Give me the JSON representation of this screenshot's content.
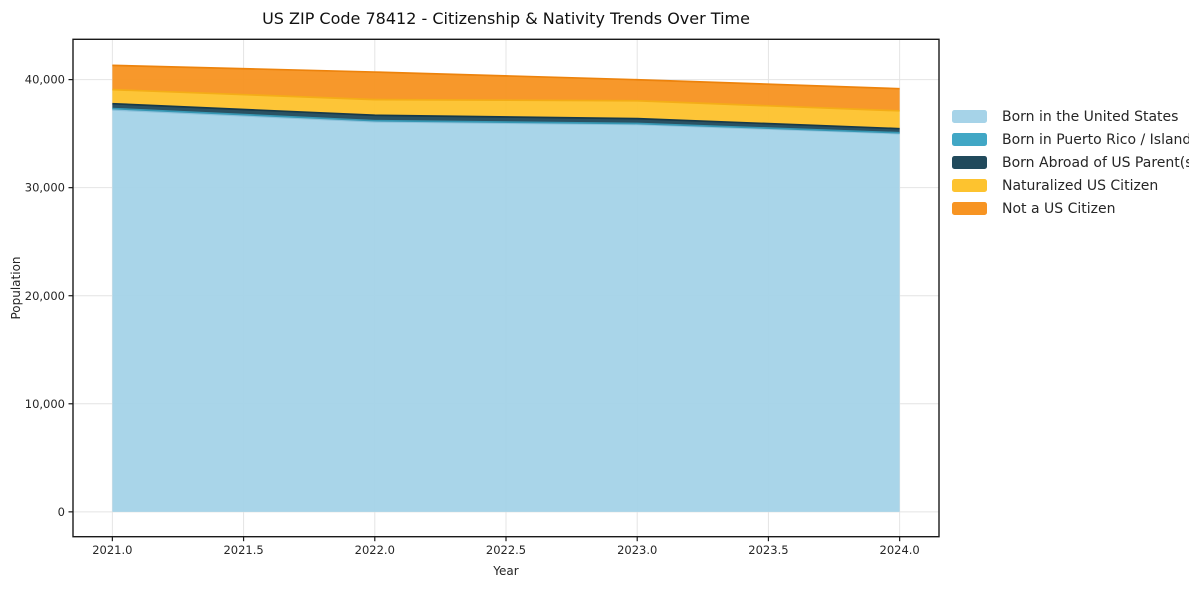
{
  "chart_data": {
    "type": "area",
    "title": "US ZIP Code 78412 - Citizenship & Nativity Trends Over Time",
    "xlabel": "Year",
    "ylabel": "Population",
    "x": [
      2021,
      2022,
      2023,
      2024
    ],
    "series": [
      {
        "name": "Born in the United States",
        "color": "#a6d3e8",
        "edge": "#8cc1db",
        "values": [
          37200,
          36100,
          35850,
          35000
        ]
      },
      {
        "name": "Born in Puerto Rico / Islands",
        "color": "#41a7c5",
        "edge": "#3697b3",
        "values": [
          120,
          100,
          90,
          80
        ]
      },
      {
        "name": "Born Abroad of US Parent(s)",
        "color": "#214a5c",
        "edge": "#16394a",
        "values": [
          450,
          500,
          450,
          380
        ]
      },
      {
        "name": "Naturalized US Citizen",
        "color": "#fdc32f",
        "edge": "#f4ad17",
        "values": [
          1300,
          1450,
          1650,
          1650
        ]
      },
      {
        "name": "Not a US Citizen",
        "color": "#f79422",
        "edge": "#ed830c",
        "values": [
          2250,
          2550,
          1950,
          2050
        ]
      }
    ],
    "xlim": [
      2020.85,
      2024.15
    ],
    "ylim": [
      -2300,
      43730
    ],
    "xticks": {
      "values": [
        2021.0,
        2021.5,
        2022.0,
        2022.5,
        2023.0,
        2023.5,
        2024.0
      ],
      "labels": [
        "2021.0",
        "2021.5",
        "2022.0",
        "2022.5",
        "2023.0",
        "2023.5",
        "2024.0"
      ]
    },
    "yticks": {
      "values": [
        0,
        10000,
        20000,
        30000,
        40000
      ],
      "labels": [
        "0",
        "10,000",
        "20,000",
        "30,000",
        "40,000"
      ]
    },
    "grid": true,
    "grid_color": "#e4e4e4",
    "spine_color": "#1a1a1a",
    "tick_label_color": "#262626",
    "legend_position": "right-outside"
  }
}
